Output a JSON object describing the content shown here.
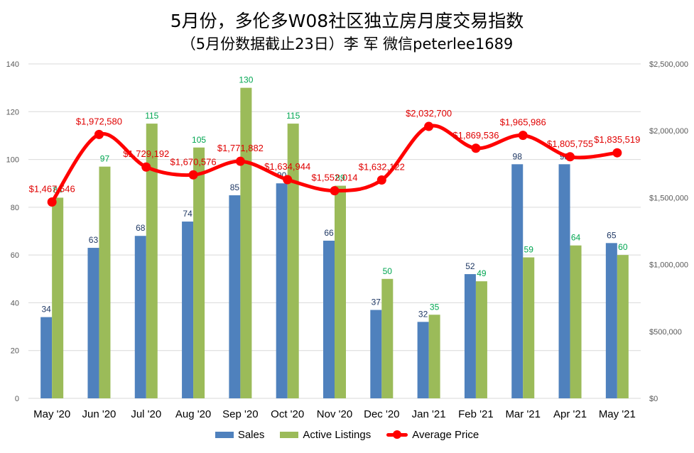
{
  "title": "5月份，多伦多W08社区独立房月度交易指数",
  "subtitle": "（5月份数据截止23日）李 军 微信peterlee1689",
  "colors": {
    "sales": "#4f81bd",
    "listings": "#9bbb59",
    "price": "#ff0000",
    "grid": "#d9d9d9"
  },
  "legend": {
    "sales": "Sales",
    "listings": "Active Listings",
    "price": "Average Price"
  },
  "chart_data": {
    "type": "bar",
    "categories": [
      "May '20",
      "Jun '20",
      "Jul '20",
      "Aug '20",
      "Sep '20",
      "Oct '20",
      "Nov '20",
      "Dec '20",
      "Jan '21",
      "Feb '21",
      "Mar '21",
      "Apr '21",
      "May '21"
    ],
    "series": [
      {
        "name": "Sales",
        "type": "bar",
        "axis": "left",
        "values": [
          34,
          63,
          68,
          74,
          85,
          90,
          66,
          37,
          32,
          52,
          98,
          98,
          65
        ]
      },
      {
        "name": "Active Listings",
        "type": "bar",
        "axis": "left",
        "values": [
          84,
          97,
          115,
          105,
          130,
          115,
          89,
          50,
          35,
          49,
          59,
          64,
          60
        ]
      },
      {
        "name": "Average Price",
        "type": "line",
        "axis": "right",
        "smooth": true,
        "values": [
          1467546,
          1972580,
          1729192,
          1670576,
          1771882,
          1634944,
          1552014,
          1632122,
          2032700,
          1869536,
          1965986,
          1805755,
          1835519
        ],
        "labels": [
          "$1,467,546",
          "$1,972,580",
          "$1,729,192",
          "$1,670,576",
          "$1,771,882",
          "$1,634,944",
          "$1,552,014",
          "$1,632,122",
          "$2,032,700",
          "$1,869,536",
          "$1,965,986",
          "$1,805,755",
          "$1,835,519"
        ]
      }
    ],
    "ylim_left": [
      0,
      140
    ],
    "yticks_left": [
      "0",
      "20",
      "40",
      "60",
      "80",
      "100",
      "120",
      "140"
    ],
    "ylim_right": [
      0,
      2500000
    ],
    "yticks_right": [
      "$0",
      "$500,000",
      "$1,000,000",
      "$1,500,000",
      "$2,000,000",
      "$2,500,000"
    ],
    "grid": true,
    "legend_position": "bottom"
  }
}
